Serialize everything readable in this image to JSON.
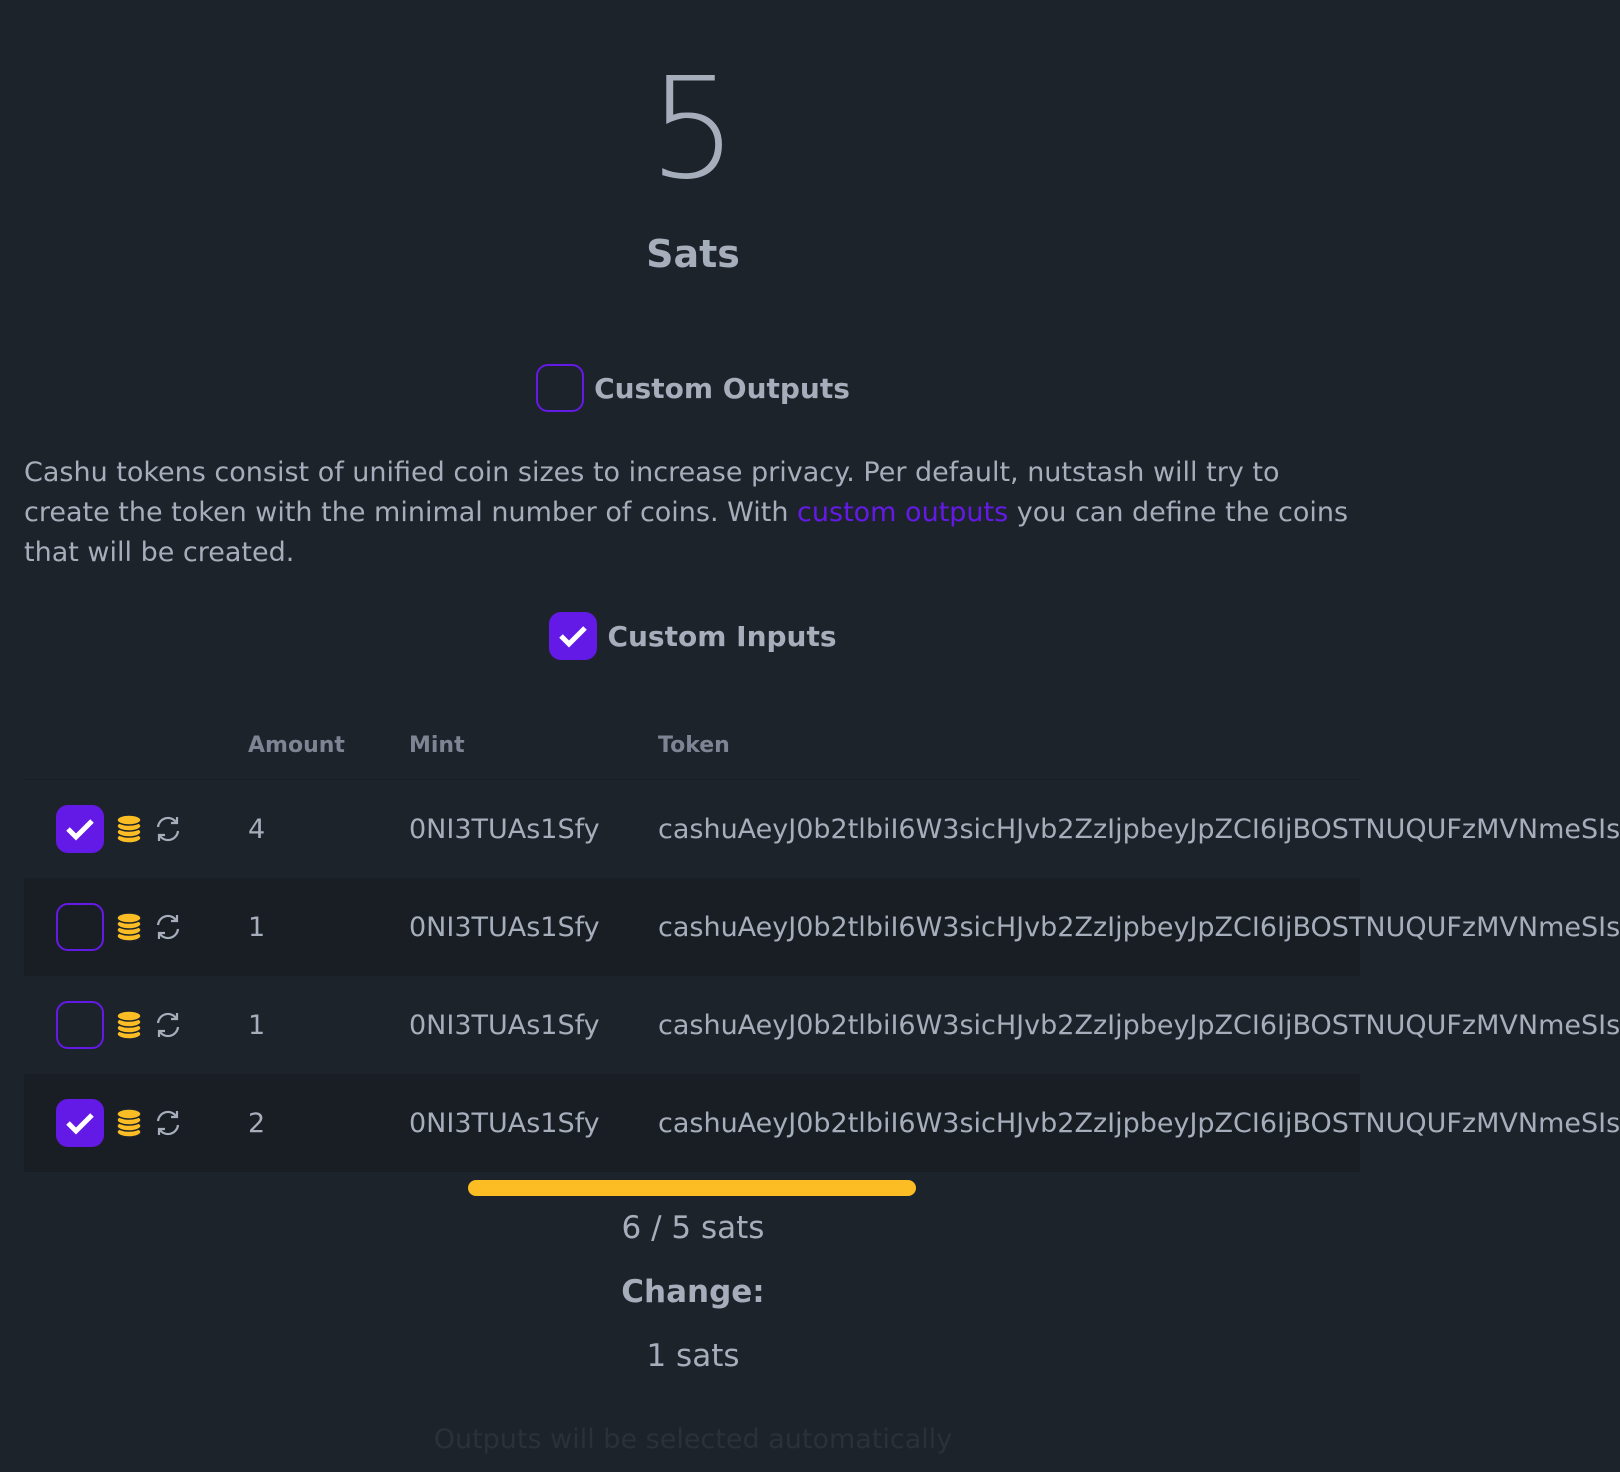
{
  "amount": "5",
  "unit": "Sats",
  "custom_outputs": {
    "label": "Custom Outputs",
    "checked": false
  },
  "description": {
    "before": "Cashu tokens consist of unified coin sizes to increase privacy. Per default, nutstash will try to create the token with the minimal number of coins. With ",
    "link": "custom outputs",
    "after": " you can define the coins that will be created."
  },
  "custom_inputs": {
    "label": "Custom Inputs",
    "checked": true
  },
  "table": {
    "headers": [
      "Amount",
      "Mint",
      "Token"
    ],
    "rows": [
      {
        "checked": true,
        "amount": "4",
        "mint": "0NI3TUAs1Sfy",
        "token": "cashuAeyJ0b2tlbiI6W3sicHJvb2ZzIjpbeyJpZCI6IjBOSTNUQUFzMVNmeSIs"
      },
      {
        "checked": false,
        "amount": "1",
        "mint": "0NI3TUAs1Sfy",
        "token": "cashuAeyJ0b2tlbiI6W3sicHJvb2ZzIjpbeyJpZCI6IjBOSTNUQUFzMVNmeSIs"
      },
      {
        "checked": false,
        "amount": "1",
        "mint": "0NI3TUAs1Sfy",
        "token": "cashuAeyJ0b2tlbiI6W3sicHJvb2ZzIjpbeyJpZCI6IjBOSTNUQUFzMVNmeSIs"
      },
      {
        "checked": true,
        "amount": "2",
        "mint": "0NI3TUAs1Sfy",
        "token": "cashuAeyJ0b2tlbiI6W3sicHJvb2ZzIjpbeyJpZCI6IjBOSTNUQUFzMVNmeSIs"
      }
    ]
  },
  "progress": {
    "value": 1.0,
    "color": "#fbbd23"
  },
  "selected": "6 / 5 sats",
  "change_label": "Change:",
  "change_value": "1 sats",
  "footer": "Outputs will be selected automatically",
  "colors": {
    "accent": "#641ae6",
    "coin": "#fbbd23",
    "background": "#1d232a"
  }
}
